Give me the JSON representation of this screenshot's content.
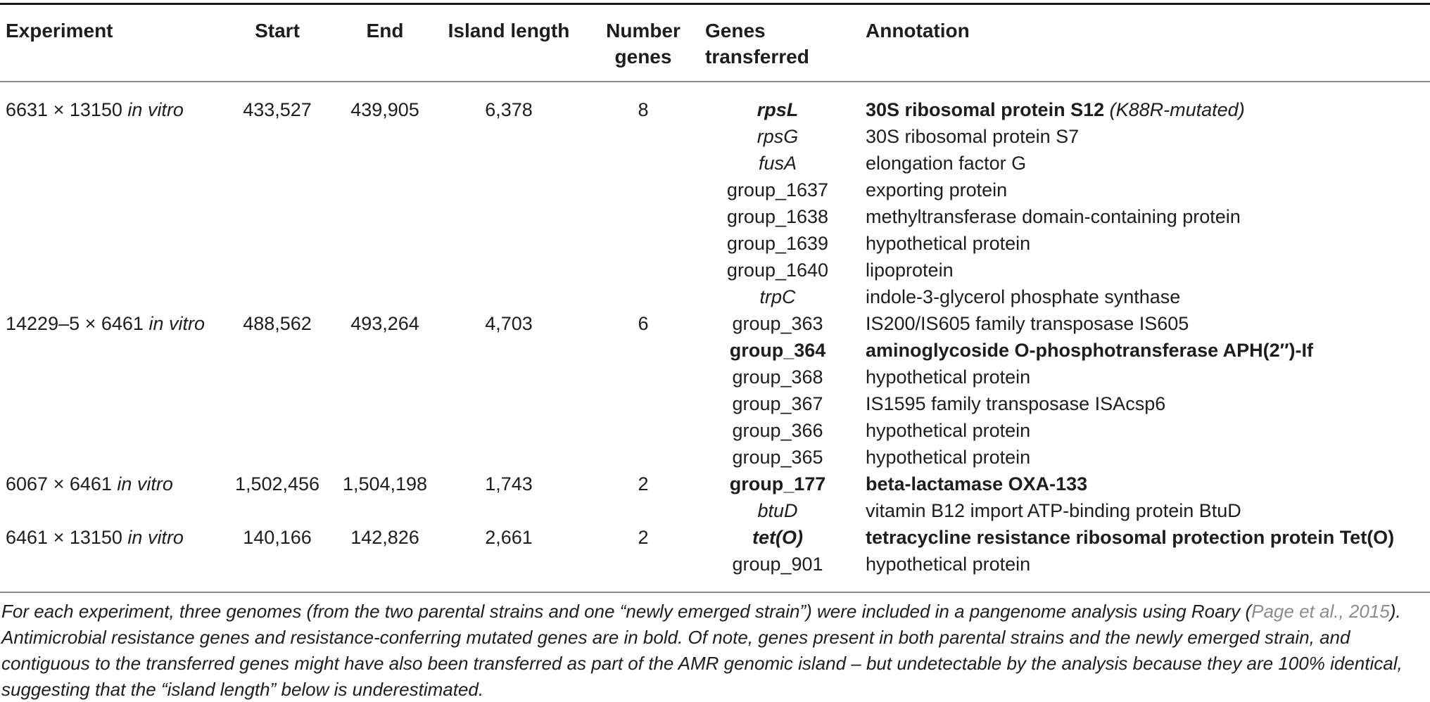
{
  "colors": {
    "text": "#1d1d1b",
    "rule_dark": "#1a1a1a",
    "rule_light": "#8a8a8a",
    "citation": "#8c8c8c",
    "background": "#ffffff"
  },
  "table": {
    "header": {
      "experiment": "Experiment",
      "start": "Start",
      "end": "End",
      "island_length": "Island length",
      "number_genes_line1": "Number",
      "number_genes_line2": "genes",
      "genes_transferred_line1": "Genes",
      "genes_transferred_line2": "transferred",
      "annotation": "Annotation"
    },
    "experiments": [
      {
        "label": "6631 × 13150",
        "condition": "in vitro",
        "start": "433,527",
        "end": "439,905",
        "island_length": "6,378",
        "number_genes": "8",
        "genes": [
          {
            "gene": "rpsL",
            "style": "bold-italic",
            "annotation": "30S ribosomal protein S12",
            "annotation_style": "bold",
            "note": " (K88R-mutated)"
          },
          {
            "gene": "rpsG",
            "style": "italic",
            "annotation": "30S ribosomal protein S7",
            "annotation_style": "normal"
          },
          {
            "gene": "fusA",
            "style": "italic",
            "annotation": "elongation factor G",
            "annotation_style": "normal"
          },
          {
            "gene": "group_1637",
            "style": "normal",
            "annotation": "exporting protein",
            "annotation_style": "normal"
          },
          {
            "gene": "group_1638",
            "style": "normal",
            "annotation": "methyltransferase domain-containing protein",
            "annotation_style": "normal"
          },
          {
            "gene": "group_1639",
            "style": "normal",
            "annotation": "hypothetical protein",
            "annotation_style": "normal"
          },
          {
            "gene": "group_1640",
            "style": "normal",
            "annotation": "lipoprotein",
            "annotation_style": "normal"
          },
          {
            "gene": "trpC",
            "style": "italic",
            "annotation": "indole-3-glycerol phosphate synthase",
            "annotation_style": "normal"
          }
        ]
      },
      {
        "label": "14229–5 × 6461",
        "condition": "in vitro",
        "start": "488,562",
        "end": "493,264",
        "island_length": "4,703",
        "number_genes": "6",
        "genes": [
          {
            "gene": "group_363",
            "style": "normal",
            "annotation": "IS200/IS605 family transposase IS605",
            "annotation_style": "normal"
          },
          {
            "gene": "group_364",
            "style": "bold",
            "annotation": "aminoglycoside O-phosphotransferase APH(2″)-If",
            "annotation_style": "bold"
          },
          {
            "gene": "group_368",
            "style": "normal",
            "annotation": "hypothetical protein",
            "annotation_style": "normal"
          },
          {
            "gene": "group_367",
            "style": "normal",
            "annotation": "IS1595 family transposase ISAcsp6",
            "annotation_style": "normal"
          },
          {
            "gene": "group_366",
            "style": "normal",
            "annotation": "hypothetical protein",
            "annotation_style": "normal"
          },
          {
            "gene": "group_365",
            "style": "normal",
            "annotation": "hypothetical protein",
            "annotation_style": "normal"
          }
        ]
      },
      {
        "label": "6067 × 6461",
        "condition": "in vitro",
        "start": "1,502,456",
        "end": "1,504,198",
        "island_length": "1,743",
        "number_genes": "2",
        "genes": [
          {
            "gene": "group_177",
            "style": "bold",
            "annotation": "beta-lactamase OXA-133",
            "annotation_style": "bold"
          },
          {
            "gene": "btuD",
            "style": "italic",
            "annotation": "vitamin B12 import ATP-binding protein BtuD",
            "annotation_style": "normal"
          }
        ]
      },
      {
        "label": "6461 × 13150",
        "condition": "in vitro",
        "start": "140,166",
        "end": "142,826",
        "island_length": "2,661",
        "number_genes": "2",
        "genes": [
          {
            "gene": "tet(O)",
            "style": "bold-italic",
            "annotation": "tetracycline resistance ribosomal protection protein Tet(O)",
            "annotation_style": "bold"
          },
          {
            "gene": "group_901",
            "style": "normal",
            "annotation": "hypothetical protein",
            "annotation_style": "normal"
          }
        ]
      }
    ]
  },
  "footnote": {
    "part1": "For each experiment, three genomes (from the two parental strains and one “newly emerged strain”) were included in a pangenome analysis using Roary (",
    "citation": "Page et al., 2015",
    "part2": "). Antimicrobial resistance genes and resistance-conferring mutated genes are in bold. Of note, genes present in both parental strains and the newly emerged strain, and contiguous to the transferred genes might have also been transferred as part of the AMR genomic island – but undetectable by the analysis because they are 100% identical, suggesting that the “island length” below is underestimated."
  }
}
